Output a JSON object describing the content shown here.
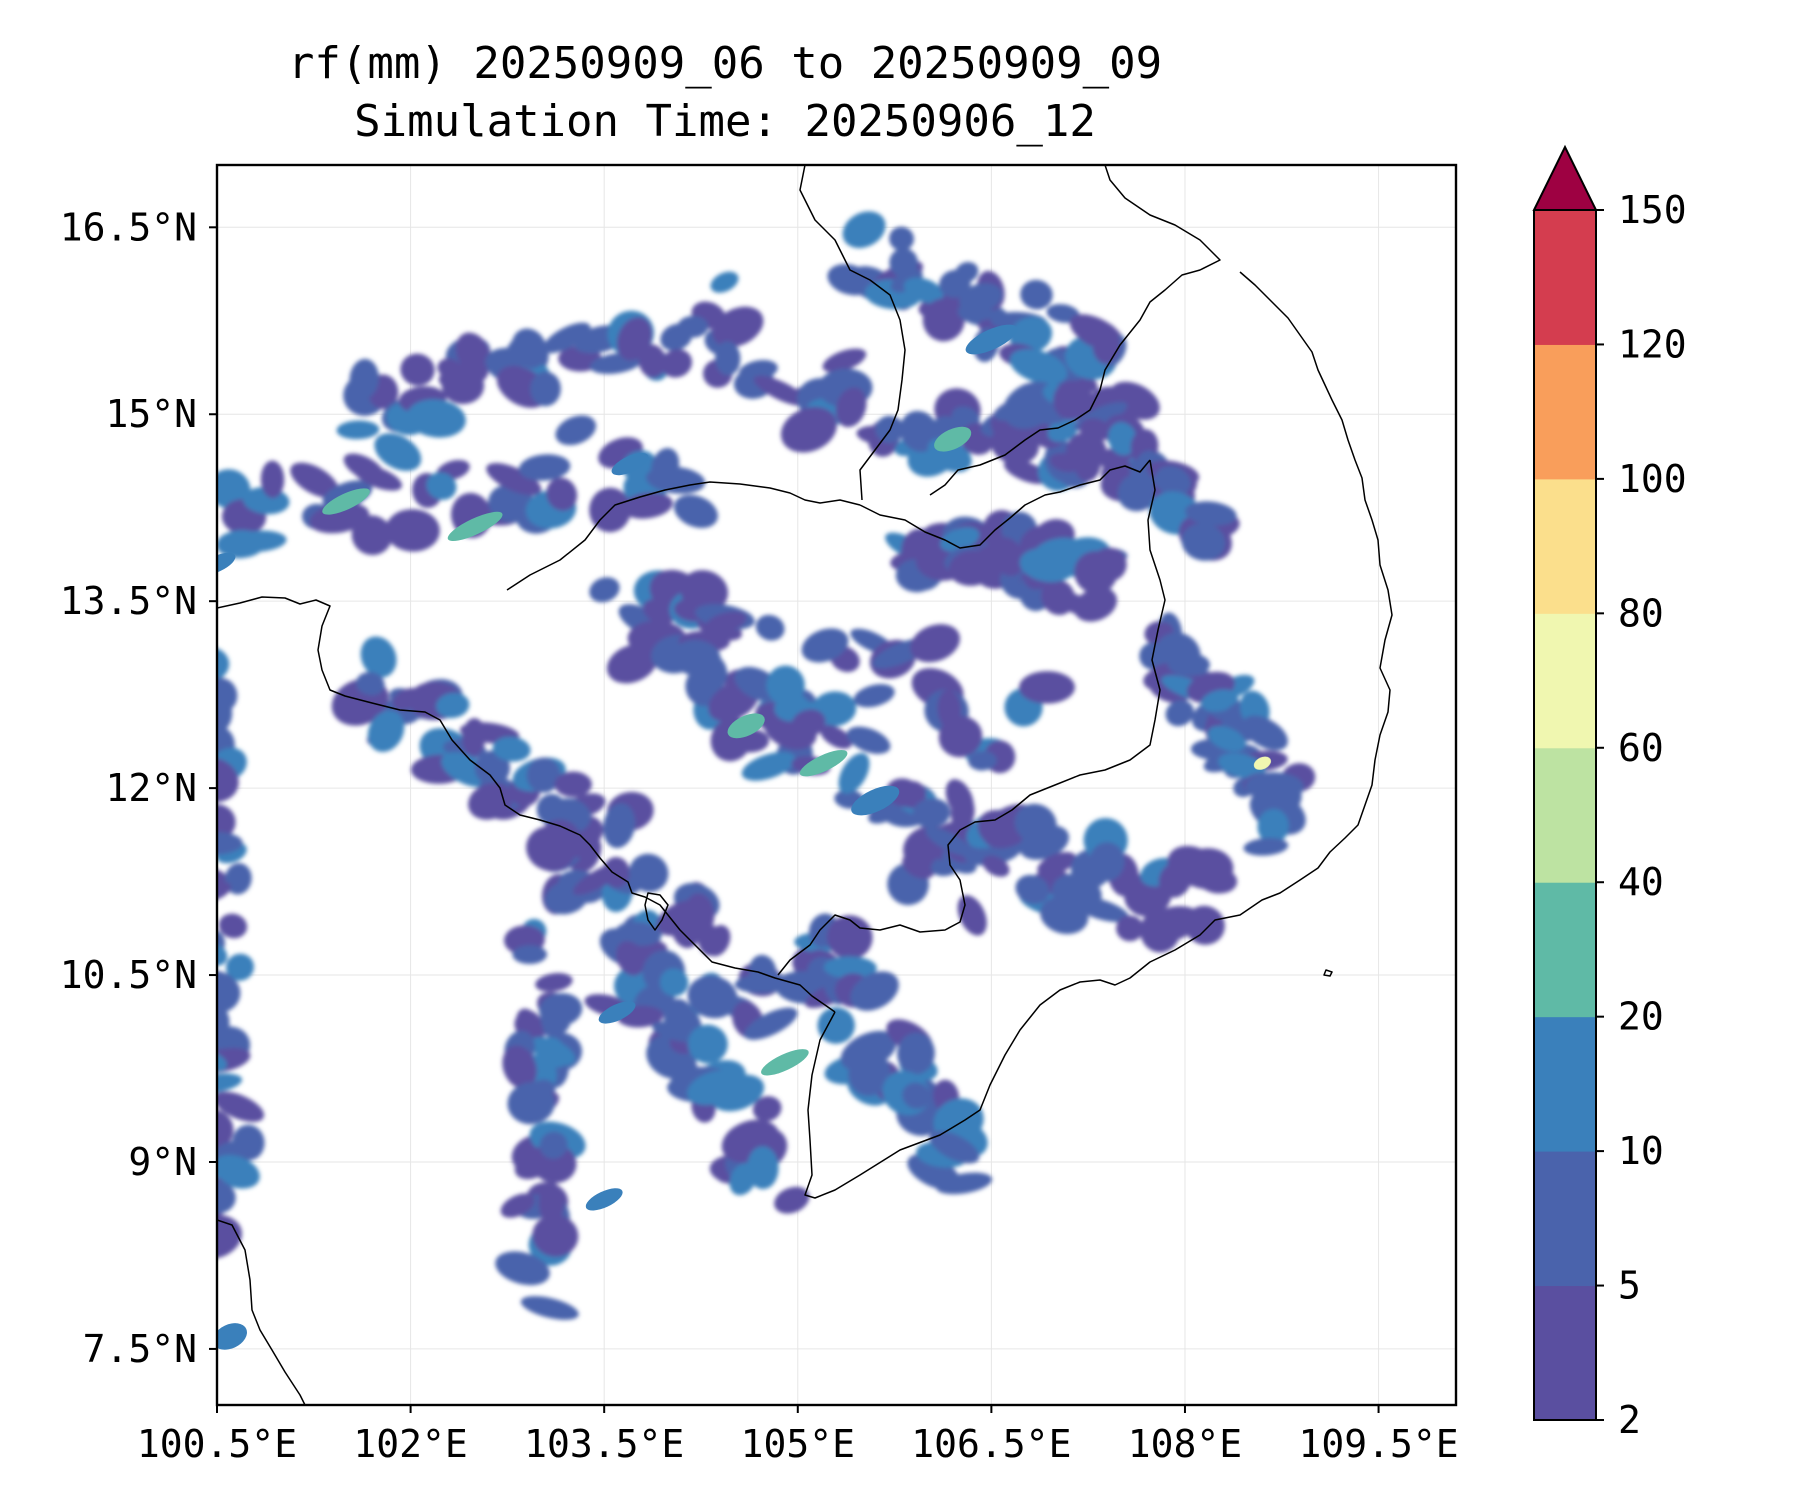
{
  "chart_data": {
    "type": "heatmap",
    "title": "rf(mm) 20250909_06 to 20250909_09",
    "subtitle": "Simulation Time: 20250906_12",
    "variable": "rf(mm)",
    "x_ticks": [
      "100.5°E",
      "102°E",
      "103.5°E",
      "105°E",
      "106.5°E",
      "108°E",
      "109.5°E"
    ],
    "x_tick_values": [
      100.5,
      102,
      103.5,
      105,
      106.5,
      108,
      109.5
    ],
    "y_ticks": [
      "16.5°N",
      "15°N",
      "13.5°N",
      "12°N",
      "10.5°N",
      "9°N",
      "7.5°N"
    ],
    "y_tick_values": [
      16.5,
      15,
      13.5,
      12,
      10.5,
      9,
      7.5
    ],
    "xlim": [
      100.5,
      110.1
    ],
    "ylim": [
      7.05,
      17.0
    ],
    "grid": true,
    "colorbar": {
      "levels": [
        2,
        5,
        10,
        20,
        40,
        60,
        80,
        100,
        120,
        150
      ],
      "labels": [
        "2",
        "5",
        "10",
        "20",
        "40",
        "60",
        "80",
        "100",
        "120",
        "150"
      ],
      "colors": [
        "#5a4fa0",
        "#4a63ac",
        "#3a80bb",
        "#5fbaa6",
        "#bde3a2",
        "#f0f7b0",
        "#fbdf8c",
        "#f99e5b",
        "#d43d4f"
      ],
      "extend_color": "#9e0142",
      "extend": "max"
    },
    "rain_cells": [
      {
        "lon": 101.5,
        "lat": 14.3,
        "value": 25
      },
      {
        "lon": 102.5,
        "lat": 14.1,
        "value": 20
      },
      {
        "lon": 103.7,
        "lat": 14.6,
        "value": 15
      },
      {
        "lon": 106.2,
        "lat": 14.8,
        "value": 22
      },
      {
        "lon": 106.5,
        "lat": 15.6,
        "value": 12
      },
      {
        "lon": 104.6,
        "lat": 12.5,
        "value": 22
      },
      {
        "lon": 105.2,
        "lat": 12.2,
        "value": 25
      },
      {
        "lon": 105.6,
        "lat": 11.9,
        "value": 18
      },
      {
        "lon": 103.6,
        "lat": 10.2,
        "value": 15
      },
      {
        "lon": 104.9,
        "lat": 9.8,
        "value": 25
      },
      {
        "lon": 108.6,
        "lat": 12.2,
        "value": 65
      },
      {
        "lon": 100.5,
        "lat": 13.8,
        "value": 15
      },
      {
        "lon": 100.6,
        "lat": 7.6,
        "value": 14
      },
      {
        "lon": 103.5,
        "lat": 8.7,
        "value": 15
      }
    ]
  }
}
